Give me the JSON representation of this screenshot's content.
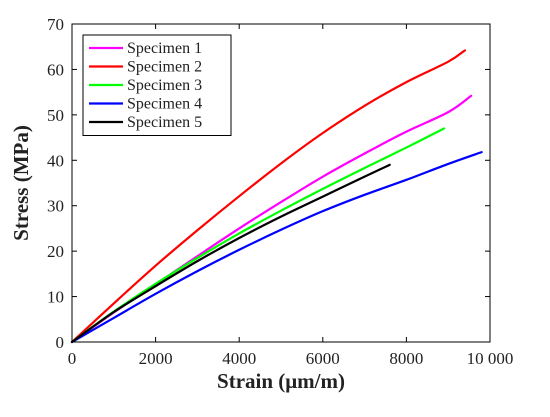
{
  "chart_data": {
    "type": "line",
    "xlabel": "Strain (μm/m)",
    "ylabel": "Stress (MPa)",
    "xlim": [
      0,
      10000
    ],
    "ylim": [
      0,
      70
    ],
    "xticks": [
      0,
      2000,
      4000,
      6000,
      8000,
      10000
    ],
    "xtick_labels": [
      "0",
      "2000",
      "4000",
      "6000",
      "8000",
      "10 000"
    ],
    "yticks": [
      0,
      10,
      20,
      30,
      40,
      50,
      60,
      70
    ],
    "ytick_labels": [
      "0",
      "10",
      "20",
      "30",
      "40",
      "50",
      "60",
      "70"
    ],
    "grid": false,
    "legend_position": "top-left",
    "series": [
      {
        "name": "Specimen 1",
        "color": "#ff00ff",
        "x": [
          0,
          1000,
          2000,
          3000,
          4000,
          5000,
          6000,
          7000,
          8000,
          9000,
          9550
        ],
        "y": [
          0,
          6.5,
          12.7,
          18.9,
          25.0,
          30.8,
          36.4,
          41.5,
          46.3,
          50.6,
          54.2
        ]
      },
      {
        "name": "Specimen 2",
        "color": "#ff0000",
        "x": [
          0,
          1000,
          2000,
          3000,
          4000,
          5000,
          6000,
          7000,
          8000,
          9000,
          9400
        ],
        "y": [
          0,
          8.5,
          16.8,
          24.6,
          32.1,
          39.3,
          46.0,
          52.0,
          57.2,
          61.7,
          64.2
        ]
      },
      {
        "name": "Specimen 3",
        "color": "#00ff00",
        "x": [
          0,
          1000,
          2000,
          3000,
          4000,
          5000,
          6000,
          7000,
          8000,
          8900
        ],
        "y": [
          0,
          6.7,
          12.8,
          18.5,
          23.9,
          28.9,
          33.7,
          38.3,
          42.8,
          47.0
        ]
      },
      {
        "name": "Specimen 4",
        "color": "#0000ff",
        "x": [
          0,
          1000,
          2000,
          3000,
          4000,
          5000,
          6000,
          7000,
          8000,
          9000,
          9800
        ],
        "y": [
          0,
          5.3,
          10.6,
          15.6,
          20.3,
          24.7,
          28.8,
          32.4,
          35.7,
          39.2,
          41.8
        ]
      },
      {
        "name": "Specimen 5",
        "color": "#000000",
        "x": [
          0,
          1000,
          2000,
          3000,
          4000,
          5000,
          6000,
          7000,
          7600
        ],
        "y": [
          0,
          6.6,
          12.3,
          17.8,
          22.9,
          27.6,
          32.0,
          36.4,
          39.0
        ]
      }
    ]
  }
}
